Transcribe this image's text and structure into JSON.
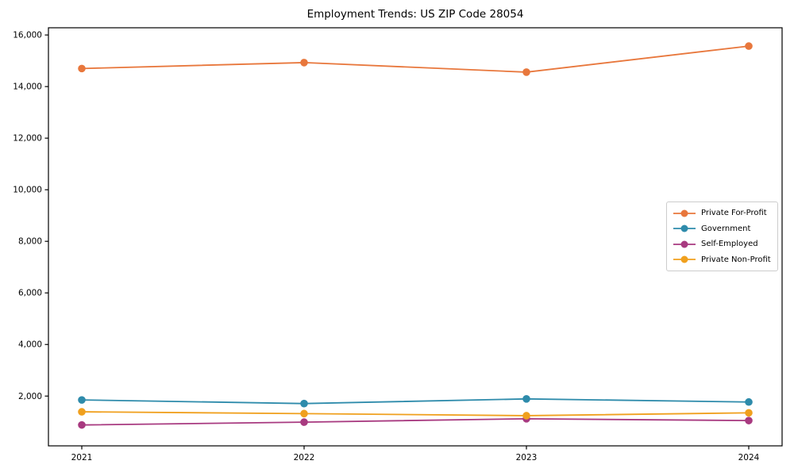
{
  "chart_data": {
    "type": "line",
    "title": "Employment Trends: US ZIP Code 28054",
    "categories": [
      "2021",
      "2022",
      "2023",
      "2024"
    ],
    "series": [
      {
        "name": "Private For-Profit",
        "color": "#e8773c",
        "marker": "circle",
        "values": [
          14700,
          14930,
          14560,
          15570
        ]
      },
      {
        "name": "Government",
        "color": "#2e8bab",
        "marker": "circle",
        "values": [
          1850,
          1710,
          1890,
          1770
        ]
      },
      {
        "name": "Self-Employed",
        "color": "#a83a80",
        "marker": "circle",
        "values": [
          880,
          990,
          1120,
          1050
        ]
      },
      {
        "name": "Private Non-Profit",
        "color": "#f0a01e",
        "marker": "circle",
        "values": [
          1390,
          1320,
          1240,
          1350
        ]
      }
    ],
    "xlabel": "",
    "ylabel": "",
    "ylim": [
      70,
      16280
    ],
    "yticks": [
      2000,
      4000,
      6000,
      8000,
      10000,
      12000,
      14000,
      16000
    ],
    "ytick_labels": [
      "2,000",
      "4,000",
      "6,000",
      "8,000",
      "10,000",
      "12,000",
      "14,000",
      "16,000"
    ],
    "grid": false,
    "legend_position": "center right"
  },
  "colors": {
    "axis": "#000000",
    "tick_text": "#000000",
    "legend_border": "#cccccc",
    "background": "#ffffff"
  }
}
